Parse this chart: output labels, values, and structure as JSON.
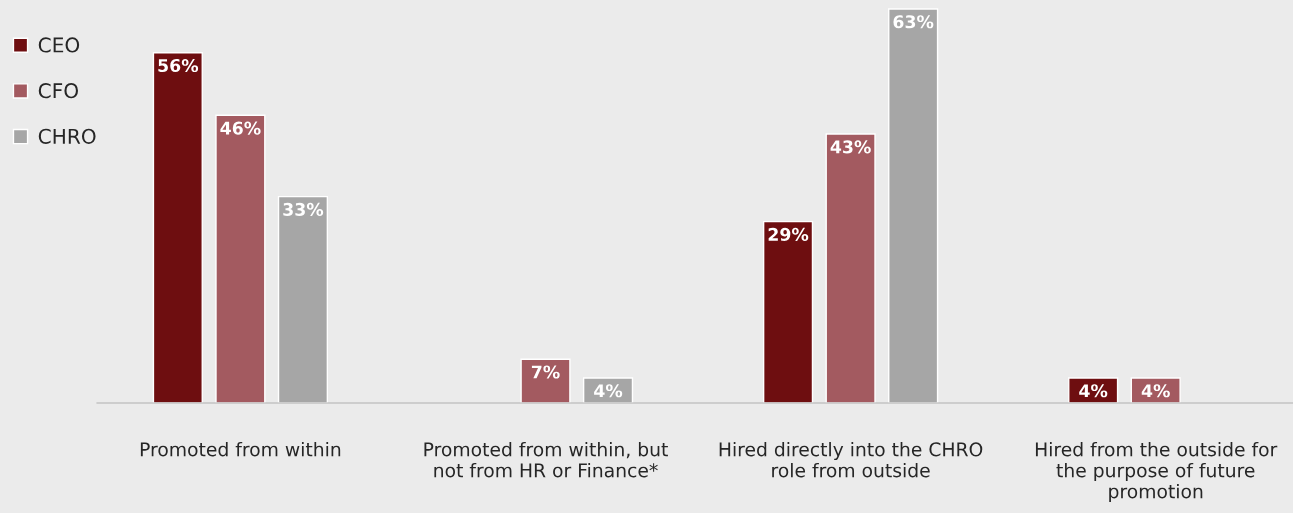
{
  "chart_data": {
    "type": "bar",
    "categories": [
      "Promoted from within",
      "Promoted from within, but\nnot from HR or Finance*",
      "Hired directly into the CHRO\nrole from outside",
      "Hired from the outside for\nthe purpose of future\npromotion"
    ],
    "series": [
      {
        "name": "CEO",
        "color": "#6e0e10",
        "values": [
          56,
          null,
          29,
          4
        ],
        "value_labels": [
          "56%",
          null,
          "29%",
          "4%"
        ]
      },
      {
        "name": "CFO",
        "color": "#a35a60",
        "values": [
          46,
          7,
          43,
          4
        ],
        "value_labels": [
          "46%",
          "7%",
          "43%",
          "4%"
        ]
      },
      {
        "name": "CHRO",
        "color": "#a6a6a6",
        "values": [
          33,
          4,
          63,
          null
        ],
        "value_labels": [
          "33%",
          "4%",
          "63%",
          null
        ]
      }
    ],
    "legend": "top left",
    "grid": false
  }
}
